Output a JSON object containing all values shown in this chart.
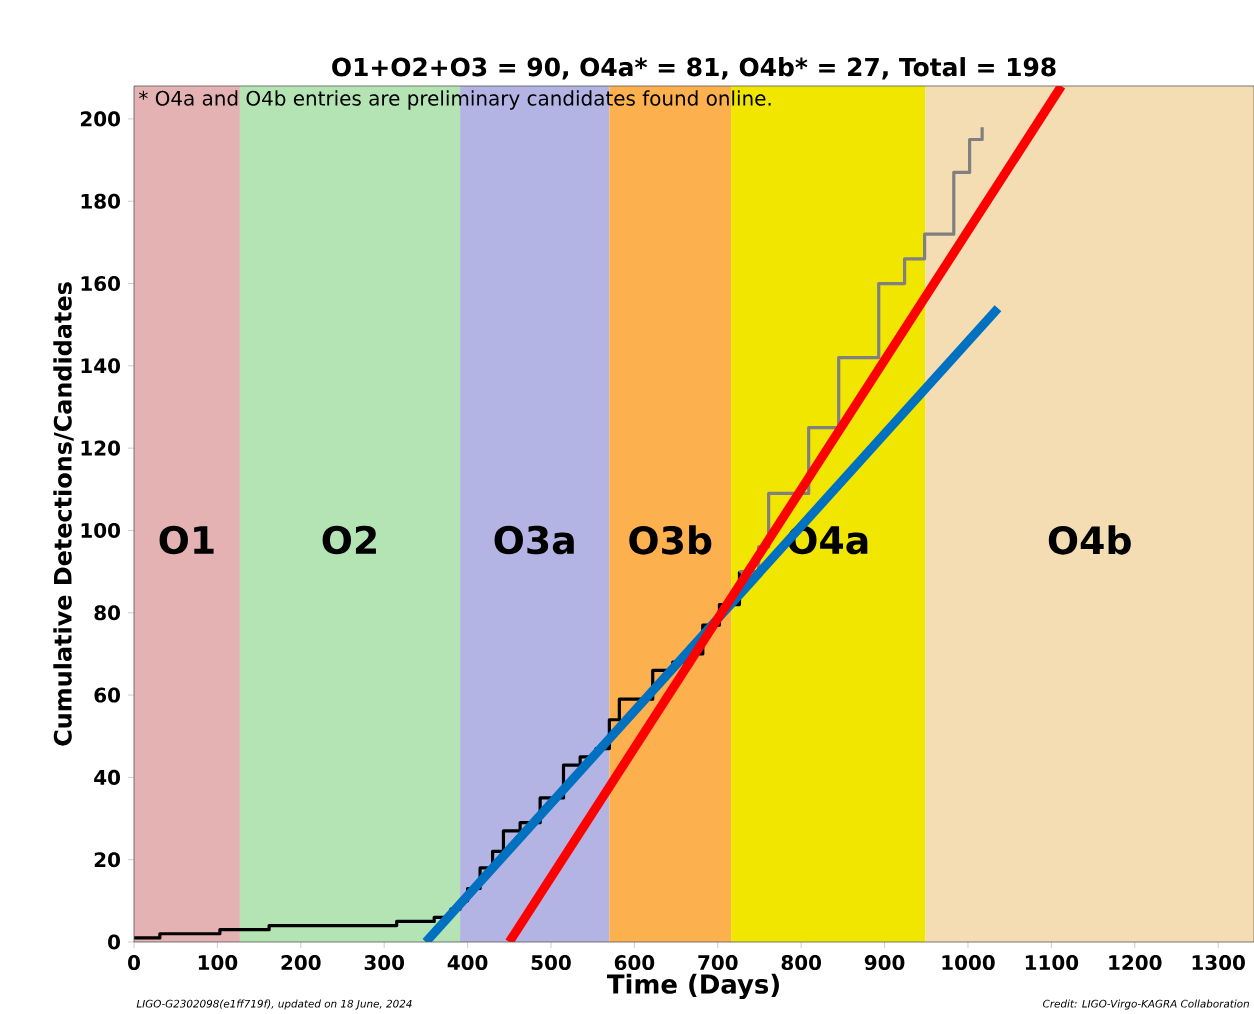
{
  "chart_data": {
    "type": "step",
    "title": "O1+O2+O3 = 90,  O4a* = 81,  O4b* = 27,  Total = 198",
    "xlabel": "Time (Days)",
    "ylabel": "Cumulative Detections/Candidates",
    "annotations": [
      "* O4a and O4b entries are preliminary candidates found online.",
      "LIGO-G2302098(e1ff719f), updated on 18 June, 2024",
      "Credit: LIGO-Virgo-KAGRA Collaboration"
    ],
    "xlim": [
      0,
      1343
    ],
    "ylim": [
      0,
      208
    ],
    "xticks": [
      0,
      100,
      200,
      300,
      400,
      500,
      600,
      700,
      800,
      900,
      1000,
      1100,
      1200,
      1300
    ],
    "yticks": [
      0,
      20,
      40,
      60,
      80,
      100,
      120,
      140,
      160,
      180,
      200
    ],
    "grid": false,
    "marker": "none",
    "line_style": "solid",
    "bands": [
      {
        "axis": "x",
        "from": 0,
        "to": 127,
        "label": "O1",
        "color": "#e4b2b2"
      },
      {
        "axis": "x",
        "from": 127,
        "to": 391,
        "label": "O2",
        "color": "#b4e4b4"
      },
      {
        "axis": "x",
        "from": 391,
        "to": 570,
        "label": "O3a",
        "color": "#b4b4e4"
      },
      {
        "axis": "x",
        "from": 570,
        "to": 716,
        "label": "O3b",
        "color": "#fdb04e"
      },
      {
        "axis": "x",
        "from": 716,
        "to": 949,
        "label": "O4a",
        "color": "#f0e600"
      },
      {
        "axis": "x",
        "from": 949,
        "to": 1343,
        "label": "O4b",
        "color": "#f5ddb3"
      }
    ],
    "series": [
      {
        "color": "#000000",
        "x": [
          0,
          31,
          103,
          162,
          315,
          360,
          380,
          391,
          400,
          415,
          430,
          443,
          463,
          487,
          515,
          535,
          554,
          570,
          582,
          600,
          622,
          646,
          662,
          682,
          702,
          726
        ],
        "values": [
          1,
          2,
          3,
          4,
          5,
          6,
          8,
          10,
          13,
          18,
          22,
          27,
          29,
          35,
          43,
          45,
          47,
          54,
          59,
          59,
          66,
          68,
          70,
          77,
          82,
          90
        ]
      },
      {
        "color": "#808080",
        "x": [
          726,
          749,
          761,
          809,
          845,
          893,
          924,
          948,
          983,
          1002,
          1017
        ],
        "values": [
          90,
          96,
          109,
          125,
          142,
          160,
          166,
          172,
          187,
          195,
          198
        ]
      },
      {
        "type": "line",
        "color": "#0070c0",
        "x": [
          350,
          1036
        ],
        "values": [
          0,
          154
        ]
      },
      {
        "type": "line",
        "color": "#ff0000",
        "x": [
          450,
          1112
        ],
        "values": [
          0,
          208
        ]
      }
    ]
  }
}
